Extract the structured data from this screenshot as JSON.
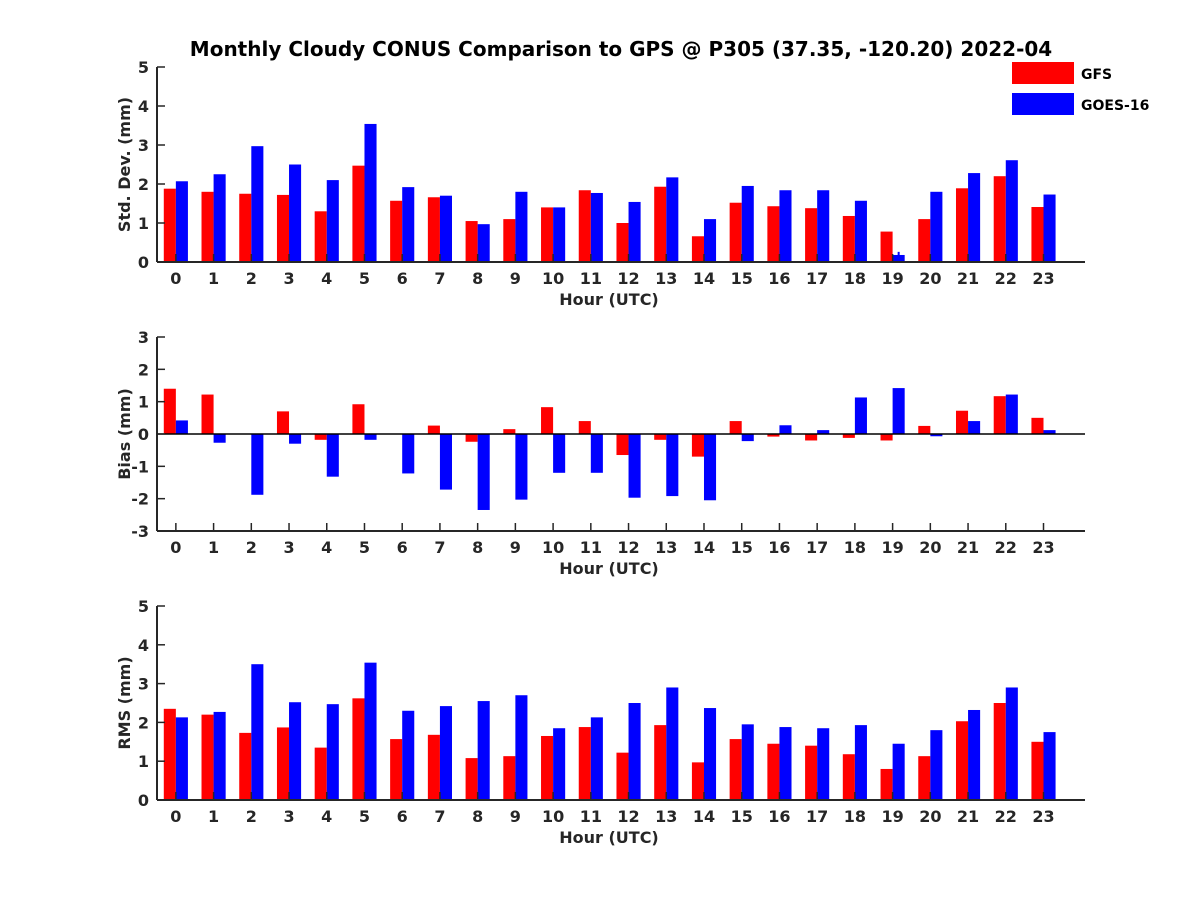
{
  "chart_data": [
    {
      "type": "bar",
      "title": "Monthly Cloudy CONUS Comparison to GPS @ P305 (37.35, -120.20) 2022-04",
      "xlabel": "Hour (UTC)",
      "ylabel": "Std. Dev. (mm)",
      "ylim": [
        0,
        5
      ],
      "yticks": [
        0,
        1,
        2,
        3,
        4,
        5
      ],
      "categories": [
        "0",
        "1",
        "2",
        "3",
        "4",
        "5",
        "6",
        "7",
        "8",
        "9",
        "10",
        "11",
        "12",
        "13",
        "14",
        "15",
        "16",
        "17",
        "18",
        "19",
        "20",
        "21",
        "22",
        "23"
      ],
      "series": [
        {
          "name": "GFS",
          "color": "#ff0000",
          "values": [
            1.88,
            1.8,
            1.75,
            1.72,
            1.3,
            2.47,
            1.57,
            1.66,
            1.05,
            1.1,
            1.4,
            1.84,
            1.0,
            1.93,
            0.66,
            1.52,
            1.43,
            1.38,
            1.18,
            0.78,
            1.1,
            1.89,
            2.2,
            1.41
          ]
        },
        {
          "name": "GOES-16",
          "color": "#0000ff",
          "values": [
            2.07,
            2.25,
            2.97,
            2.5,
            2.1,
            3.54,
            1.92,
            1.7,
            0.97,
            1.8,
            1.4,
            1.77,
            1.54,
            2.17,
            1.1,
            1.95,
            1.84,
            1.84,
            1.57,
            0.18,
            1.8,
            2.28,
            2.61,
            1.73
          ]
        }
      ],
      "error_marker": {
        "category": "19",
        "series": "GOES-16",
        "low": 0.14,
        "high": 0.26
      },
      "grid": false,
      "legend": "top-right"
    },
    {
      "type": "bar",
      "xlabel": "Hour (UTC)",
      "ylabel": "Bias (mm)",
      "ylim": [
        -3,
        3
      ],
      "yticks": [
        -3,
        -2,
        -1,
        0,
        1,
        2,
        3
      ],
      "categories": [
        "0",
        "1",
        "2",
        "3",
        "4",
        "5",
        "6",
        "7",
        "8",
        "9",
        "10",
        "11",
        "12",
        "13",
        "14",
        "15",
        "16",
        "17",
        "18",
        "19",
        "20",
        "21",
        "22",
        "23"
      ],
      "series": [
        {
          "name": "GFS",
          "color": "#ff0000",
          "values": [
            1.4,
            1.22,
            0.0,
            0.7,
            -0.18,
            0.92,
            0.0,
            0.26,
            -0.24,
            0.15,
            0.83,
            0.4,
            -0.65,
            -0.18,
            -0.7,
            0.4,
            -0.08,
            -0.2,
            -0.12,
            -0.2,
            0.25,
            0.72,
            1.17,
            0.5
          ]
        },
        {
          "name": "GOES-16",
          "color": "#0000ff",
          "values": [
            0.42,
            -0.27,
            -1.88,
            -0.3,
            -1.32,
            -0.18,
            -1.22,
            -1.72,
            -2.35,
            -2.03,
            -1.2,
            -1.2,
            -1.97,
            -1.92,
            -2.05,
            -0.22,
            0.27,
            0.12,
            1.13,
            1.42,
            -0.07,
            0.4,
            1.22,
            0.12
          ]
        }
      ],
      "grid": false
    },
    {
      "type": "bar",
      "xlabel": "Hour (UTC)",
      "ylabel": "RMS (mm)",
      "ylim": [
        0,
        5
      ],
      "yticks": [
        0,
        1,
        2,
        3,
        4,
        5
      ],
      "categories": [
        "0",
        "1",
        "2",
        "3",
        "4",
        "5",
        "6",
        "7",
        "8",
        "9",
        "10",
        "11",
        "12",
        "13",
        "14",
        "15",
        "16",
        "17",
        "18",
        "19",
        "20",
        "21",
        "22",
        "23"
      ],
      "series": [
        {
          "name": "GFS",
          "color": "#ff0000",
          "values": [
            2.35,
            2.2,
            1.73,
            1.87,
            1.35,
            2.62,
            1.57,
            1.68,
            1.08,
            1.13,
            1.65,
            1.88,
            1.22,
            1.93,
            0.97,
            1.57,
            1.45,
            1.4,
            1.18,
            0.8,
            1.13,
            2.03,
            2.5,
            1.5
          ]
        },
        {
          "name": "GOES-16",
          "color": "#0000ff",
          "values": [
            2.13,
            2.27,
            3.5,
            2.52,
            2.47,
            3.54,
            2.3,
            2.42,
            2.55,
            2.7,
            1.85,
            2.13,
            2.5,
            2.9,
            2.37,
            1.95,
            1.88,
            1.85,
            1.93,
            1.45,
            1.8,
            2.32,
            2.9,
            1.75
          ]
        }
      ],
      "grid": false
    }
  ]
}
